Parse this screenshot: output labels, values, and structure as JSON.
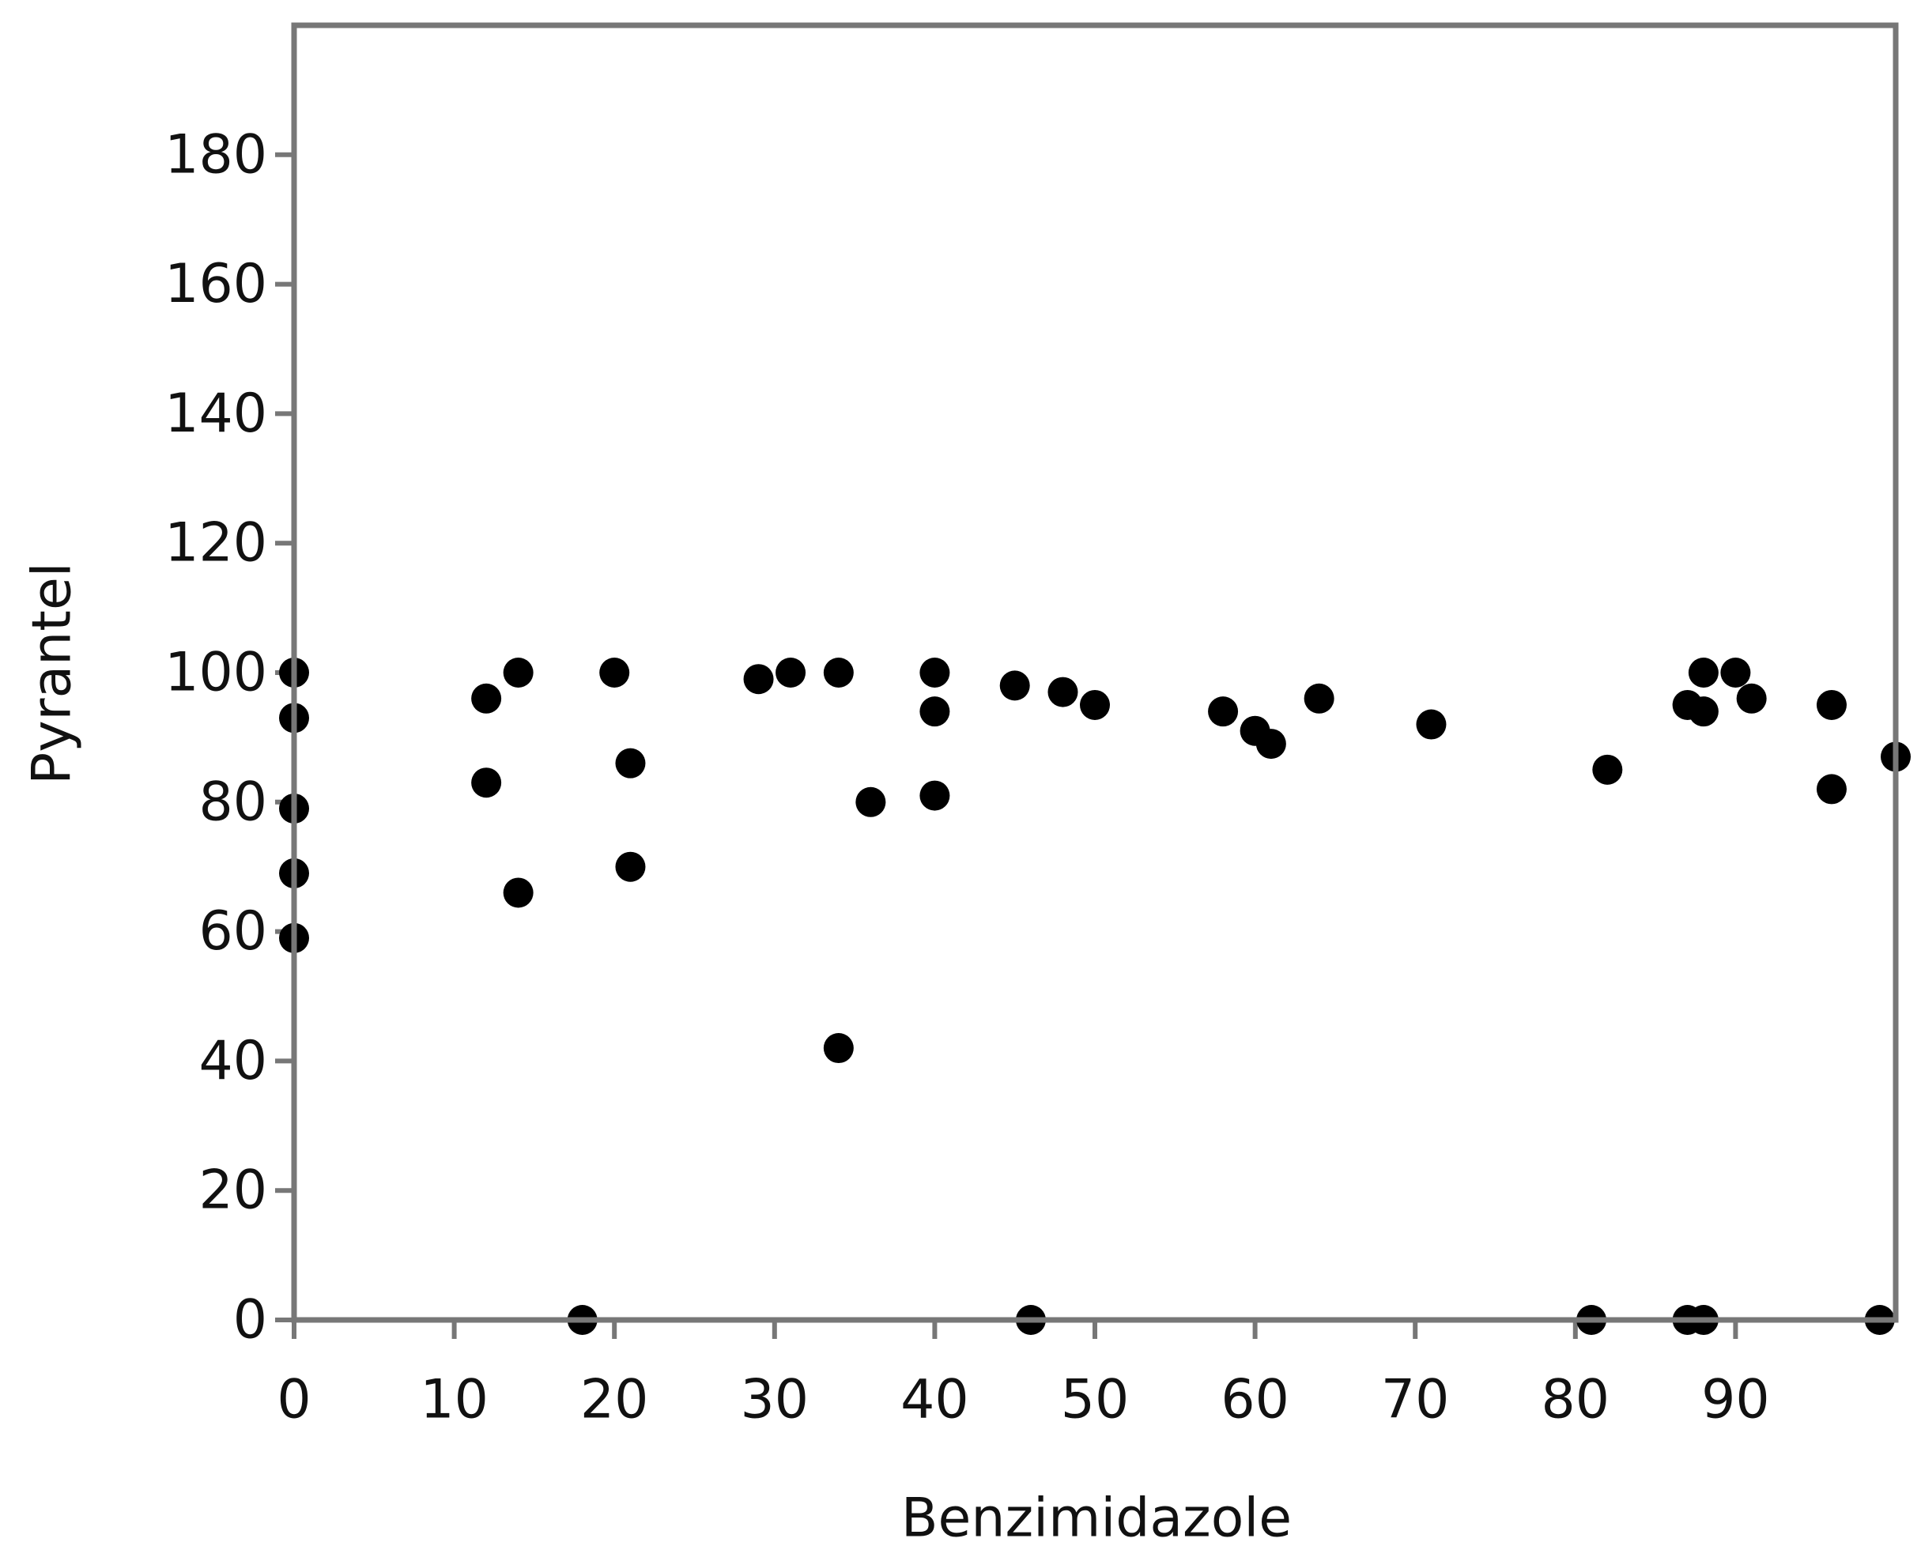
{
  "chart_data": {
    "type": "scatter",
    "x_label": "Benzimidazole",
    "y_label": "Pyrantel",
    "x": [
      0,
      0,
      0,
      0,
      0,
      12,
      12,
      14,
      14,
      18,
      20,
      21,
      21,
      29,
      31,
      34,
      34,
      36,
      40,
      40,
      40,
      45,
      46,
      48,
      50,
      58,
      60,
      61,
      64,
      71,
      81,
      82,
      87,
      87,
      88,
      88,
      88,
      90,
      91,
      96,
      96,
      99,
      100
    ],
    "values": [
      100,
      93,
      79,
      69,
      59,
      96,
      83,
      100,
      66,
      0,
      100,
      86,
      70,
      99,
      100,
      100,
      42,
      80,
      100,
      94,
      81,
      98,
      0,
      97,
      95,
      94,
      91,
      89,
      96,
      92,
      0,
      85,
      95,
      0,
      100,
      94,
      0,
      100,
      96,
      95,
      82,
      0,
      87
    ],
    "color": "#000000",
    "xlim": [
      0,
      100
    ],
    "xticks": [
      0,
      10,
      20,
      30,
      40,
      50,
      60,
      70,
      80,
      90
    ],
    "ylim": [
      0,
      200
    ],
    "yticks": [
      0,
      20,
      40,
      60,
      80,
      100,
      120,
      140,
      160,
      180
    ],
    "grid": false
  }
}
